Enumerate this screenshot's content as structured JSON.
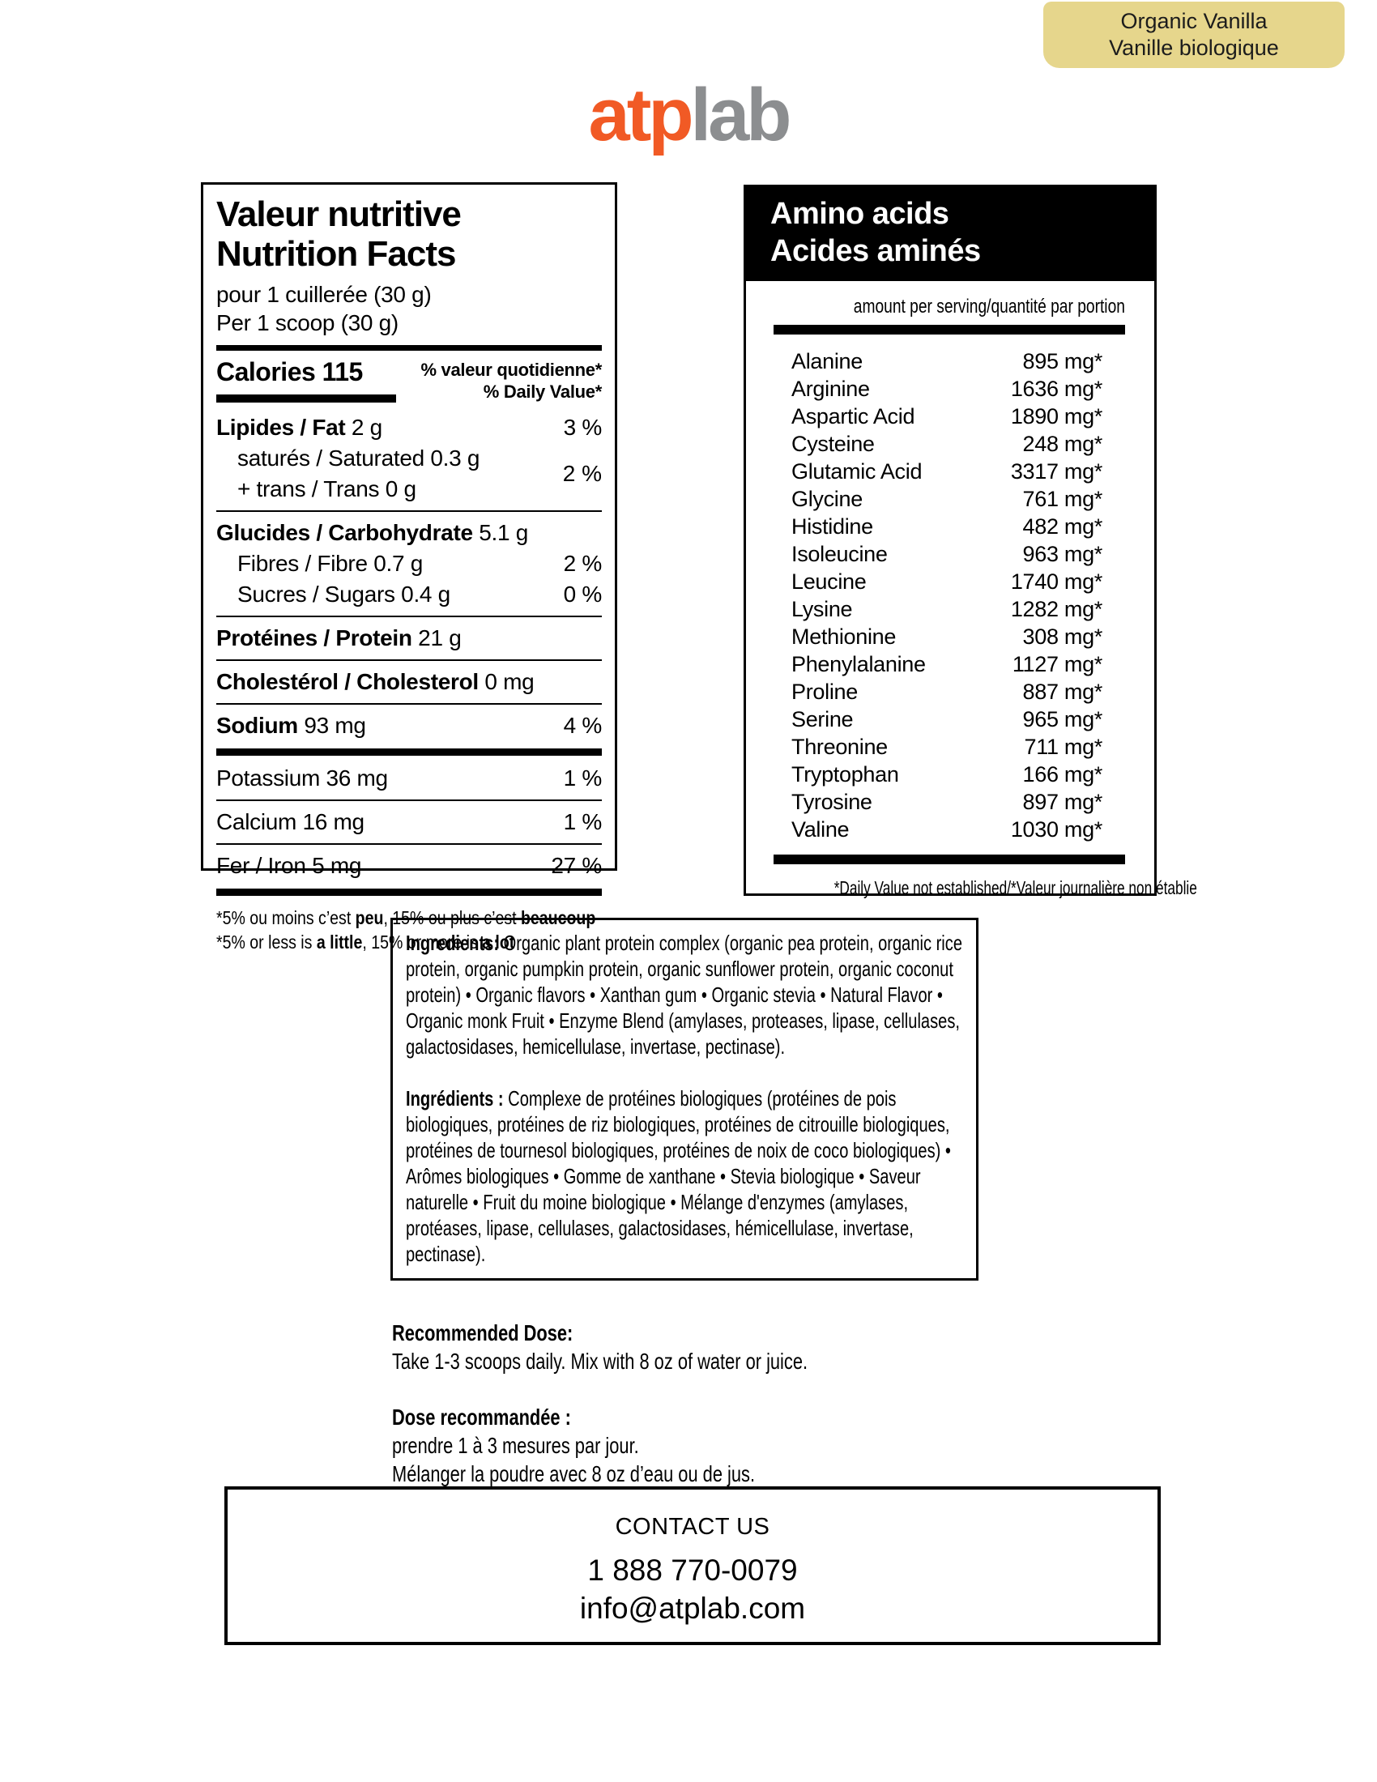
{
  "badge": {
    "line1": "Organic Vanilla",
    "line2": "Vanille biologique",
    "bg": "#e6d68c"
  },
  "logo": {
    "part1": "atp",
    "part2": "lab",
    "color_atp": "#f15a25",
    "color_lab": "#8c8e90"
  },
  "nutrition": {
    "title_fr": "Valeur nutritive",
    "title_en": "Nutrition Facts",
    "serving_fr": "pour 1 cuillerée (30 g)",
    "serving_en": "Per 1 scoop (30 g)",
    "calories_label": "Calories",
    "calories_value": "115",
    "dv_header_fr": "% valeur quotidienne*",
    "dv_header_en": "% Daily Value*",
    "rows": [
      {
        "type": "row",
        "bold": "Lipides / Fat",
        "rest": "2 g",
        "dv": "3 %",
        "indent": false
      },
      {
        "type": "row2",
        "lines": [
          "saturés / Saturated 0.3 g",
          "+ trans / Trans 0 g"
        ],
        "dv": "2 %"
      },
      {
        "type": "rule"
      },
      {
        "type": "row",
        "bold": "Glucides / Carbohydrate",
        "rest": "5.1 g",
        "dv": "",
        "indent": false
      },
      {
        "type": "row",
        "bold": "",
        "rest": "Fibres / Fibre 0.7 g",
        "dv": "2 %",
        "indent": true
      },
      {
        "type": "row",
        "bold": "",
        "rest": "Sucres / Sugars 0.4 g",
        "dv": "0 %",
        "indent": true
      },
      {
        "type": "rule"
      },
      {
        "type": "row",
        "bold": "Protéines / Protein",
        "rest": "21 g",
        "dv": "",
        "indent": false
      },
      {
        "type": "rule"
      },
      {
        "type": "row",
        "bold": "Cholestérol / Cholesterol",
        "rest": "0 mg",
        "dv": "",
        "indent": false
      },
      {
        "type": "rule"
      },
      {
        "type": "row",
        "bold": "Sodium",
        "rest": "93 mg",
        "dv": "4 %",
        "indent": false
      },
      {
        "type": "bar"
      },
      {
        "type": "row",
        "bold": "",
        "rest": "Potassium 36 mg",
        "dv": "1 %",
        "indent": false
      },
      {
        "type": "rule"
      },
      {
        "type": "row",
        "bold": "",
        "rest": "Calcium 16 mg",
        "dv": "1 %",
        "indent": false
      },
      {
        "type": "rule"
      },
      {
        "type": "row",
        "bold": "",
        "rest": "Fer / Iron 5 mg",
        "dv": "27 %",
        "indent": false
      },
      {
        "type": "bar"
      }
    ],
    "footnote_fr": [
      {
        "t": "*5% ou moins c’est "
      },
      {
        "t": "peu",
        "b": true
      },
      {
        "t": ", 15% ou plus c’est "
      },
      {
        "t": "beaucoup",
        "b": true
      }
    ],
    "footnote_en": [
      {
        "t": "*5% or less is "
      },
      {
        "t": "a little",
        "b": true
      },
      {
        "t": ", 15% or more is "
      },
      {
        "t": "a lot",
        "b": true
      }
    ]
  },
  "amino": {
    "title_en": "Amino acids",
    "title_fr": "Acides aminés",
    "column_header": "amount per serving/quantité par portion",
    "rows": [
      {
        "name": "Alanine",
        "value": "895 mg*"
      },
      {
        "name": "Arginine",
        "value": "1636 mg*"
      },
      {
        "name": "Aspartic Acid",
        "value": "1890 mg*"
      },
      {
        "name": "Cysteine",
        "value": "248 mg*"
      },
      {
        "name": "Glutamic Acid",
        "value": "3317 mg*"
      },
      {
        "name": "Glycine",
        "value": "761 mg*"
      },
      {
        "name": "Histidine",
        "value": "482 mg*"
      },
      {
        "name": "Isoleucine",
        "value": "963 mg*"
      },
      {
        "name": "Leucine",
        "value": "1740 mg*"
      },
      {
        "name": "Lysine",
        "value": "1282 mg*"
      },
      {
        "name": "Methionine",
        "value": "308 mg*"
      },
      {
        "name": "Phenylalanine",
        "value": "1127 mg*"
      },
      {
        "name": "Proline",
        "value": "887 mg*"
      },
      {
        "name": "Serine",
        "value": "965 mg*"
      },
      {
        "name": "Threonine",
        "value": "711 mg*"
      },
      {
        "name": "Tryptophan",
        "value": "166 mg*"
      },
      {
        "name": "Tyrosine",
        "value": "897 mg*"
      },
      {
        "name": "Valine",
        "value": "1030 mg*"
      }
    ],
    "footnote": "*Daily Value not established/*Valeur journalière non établie"
  },
  "ingredients": {
    "en_label": "Ingredients:",
    "en_text": " Organic plant protein complex (organic pea protein, organic rice protein, organic pumpkin protein, organic sunflower protein, organic coconut protein) • Organic flavors • Xanthan gum • Organic stevia • Natural Flavor • Organic monk Fruit • Enzyme Blend (amylases, proteases, lipase, cellulases, galactosidases, hemicellulase, invertase, pectinase).",
    "fr_label": "Ingrédients :",
    "fr_text": " Complexe de protéines biologiques (protéines de pois biologiques, protéines de riz biologiques, protéines de citrouille biologiques, protéines de tournesol biologiques, protéines de noix de coco biologiques) • Arômes biologiques • Gomme de xanthane • Stevia biologique • Saveur naturelle • Fruit du moine biologique • Mélange d'enzymes (amylases, protéases, lipase, cellulases, galactosidases, hémicellulase, invertase, pectinase)."
  },
  "dose": {
    "en_title": "Recommended Dose:",
    "en_text": "Take 1-3 scoops daily. Mix with 8 oz of water or juice.",
    "fr_title": "Dose recommandée :",
    "fr_line1": "prendre 1 à 3 mesures par jour.",
    "fr_line2": "Mélanger la poudre avec 8 oz d’eau ou de jus."
  },
  "contact": {
    "title": "CONTACT US",
    "phone": "1 888 770-0079",
    "email": "info@atplab.com"
  }
}
